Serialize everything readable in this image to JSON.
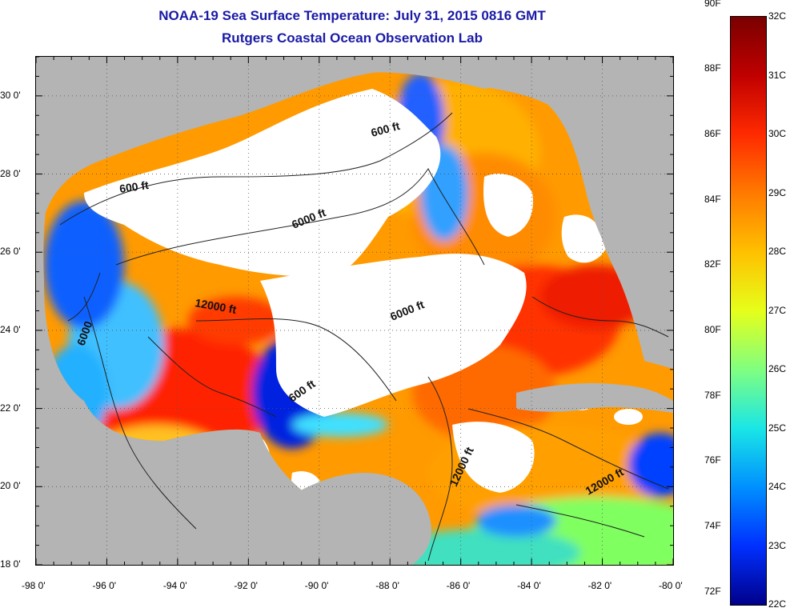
{
  "title": "NOAA-19 Sea Surface Temperature:  July 31, 2015 0816 GMT",
  "subtitle": "Rutgers Coastal Ocean Observation Lab",
  "map": {
    "lon_range": [
      -98,
      -80
    ],
    "lat_range": [
      18,
      31
    ],
    "x_ticks": [
      "-98 0'",
      "-96 0'",
      "-94 0'",
      "-92 0'",
      "-90 0'",
      "-88 0'",
      "-86 0'",
      "-84 0'",
      "-82 0'",
      "-80 0'"
    ],
    "y_ticks": [
      "30 0'",
      "28 0'",
      "26 0'",
      "24 0'",
      "22 0'",
      "20 0'",
      "18 0'"
    ],
    "contour_labels": [
      "600 ft",
      "600 ft",
      "6000 ft",
      "6000 ft",
      "12000 ft",
      "6000",
      "600 ft",
      "12000 ft",
      "12000 ft"
    ],
    "colors": {
      "land": "#b4b4b4",
      "cloud": "#ffffff",
      "grid": "#555555",
      "contour": "#222222"
    }
  },
  "colorbar": {
    "fahrenheit_labels": [
      "90F",
      "88F",
      "86F",
      "84F",
      "82F",
      "80F",
      "78F",
      "76F",
      "74F",
      "72F"
    ],
    "celsius_labels": [
      "32C",
      "31C",
      "30C",
      "29C",
      "28C",
      "27C",
      "26C",
      "25C",
      "24C",
      "23C",
      "22C"
    ],
    "range_c": [
      22,
      32
    ],
    "colormap": [
      "#7a0000",
      "#c00000",
      "#ff2a00",
      "#ff7a00",
      "#ffc000",
      "#e6ff1a",
      "#80ff80",
      "#1ae6e6",
      "#0090ff",
      "#0030ff",
      "#00008a"
    ]
  }
}
